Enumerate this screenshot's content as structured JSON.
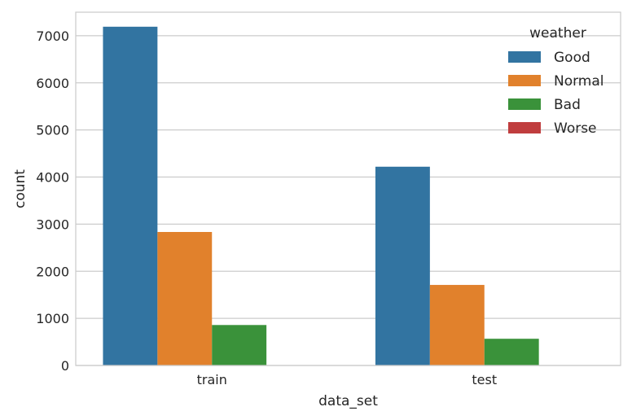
{
  "chart_data": {
    "type": "bar",
    "categories": [
      "train",
      "test"
    ],
    "series": [
      {
        "name": "Good",
        "values": [
          7192,
          4220
        ],
        "color": "#3274a1"
      },
      {
        "name": "Normal",
        "values": [
          2834,
          1710
        ],
        "color": "#e1812c"
      },
      {
        "name": "Bad",
        "values": [
          859,
          567
        ],
        "color": "#3a923a"
      },
      {
        "name": "Worse",
        "values": [
          1,
          0
        ],
        "color": "#c03d3e"
      }
    ],
    "xlabel": "data_set",
    "ylabel": "count",
    "ylim": [
      0,
      7500
    ],
    "yticks": [
      0,
      1000,
      2000,
      3000,
      4000,
      5000,
      6000,
      7000
    ],
    "legend_title": "weather",
    "legend_position": "top-right",
    "grid": "y"
  }
}
